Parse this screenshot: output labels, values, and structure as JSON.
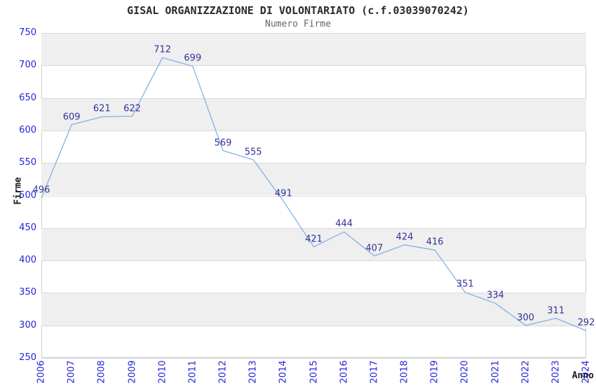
{
  "chart_data": {
    "type": "line",
    "title": "GISAL ORGANIZZAZIONE DI VOLONTARIATO (c.f.03039070242)",
    "subtitle": "Numero Firme",
    "xlabel": "Anno",
    "ylabel": "Firme",
    "categories": [
      "2006",
      "2007",
      "2008",
      "2009",
      "2010",
      "2011",
      "2012",
      "2013",
      "2014",
      "2015",
      "2016",
      "2017",
      "2018",
      "2019",
      "2020",
      "2021",
      "2022",
      "2023",
      "2024"
    ],
    "series": [
      {
        "name": "Numero Firme",
        "values": [
          496,
          609,
          621,
          622,
          712,
          699,
          569,
          555,
          491,
          421,
          444,
          407,
          424,
          416,
          351,
          334,
          300,
          311,
          292
        ]
      }
    ],
    "point_labels": [
      "496",
      "609",
      "621",
      "622",
      "712",
      "699",
      "569",
      "555",
      "491",
      "421",
      "444",
      "407",
      "424",
      "416",
      "351",
      "334",
      "300",
      "311",
      "292"
    ],
    "ylim": [
      250,
      750
    ],
    "ytick_step": 50,
    "yticks": [
      "250",
      "300",
      "350",
      "400",
      "450",
      "500",
      "550",
      "600",
      "650",
      "700",
      "750"
    ],
    "grid": "horizontal alternating bands",
    "legend": "none",
    "colors": {
      "line": "#85b1e3",
      "tick_label": "#2323d7",
      "point_label": "#333399",
      "band": "#efefef",
      "gridline": "#d9d9d9",
      "plot_border": "#cccccc",
      "title": "#2b2b2b",
      "subtitle": "#666666",
      "axis_name": "#1a1a1a",
      "background": "#ffffff"
    }
  }
}
